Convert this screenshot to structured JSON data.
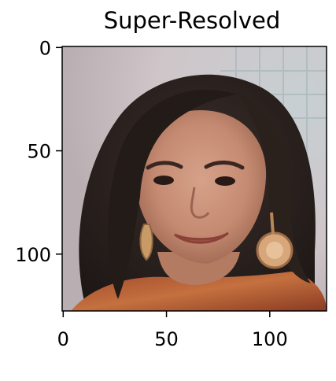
{
  "chart_data": {
    "type": "image",
    "title": "Super-Resolved",
    "image_subject": "Portrait photograph of a woman with long dark hair and large earrings",
    "xlim": [
      -0.5,
      127.5
    ],
    "ylim": [
      127.5,
      -0.5
    ],
    "xticks": [
      0,
      50,
      100
    ],
    "yticks": [
      0,
      50,
      100
    ],
    "xtick_labels": [
      "0",
      "50",
      "100"
    ],
    "ytick_labels": [
      "0",
      "50",
      "100"
    ],
    "grid": false
  },
  "colors": {
    "background": "#ffffff",
    "axis": "#000000"
  }
}
